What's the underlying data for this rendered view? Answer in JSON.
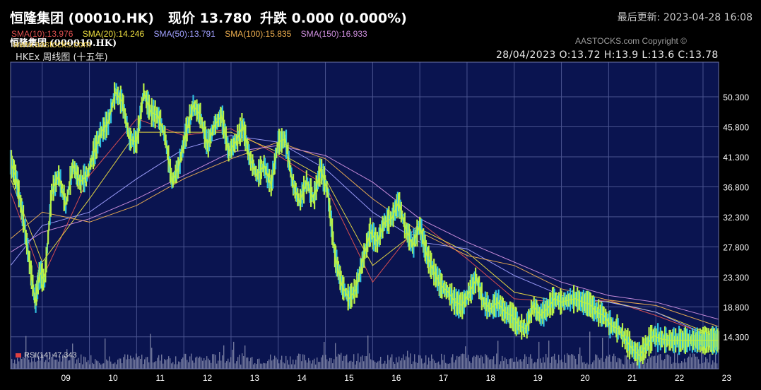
{
  "header": {
    "stock_name": "恒隆集团 (00010.HK)",
    "price": "现价 13.780",
    "change": "升跌 0.000 (0.000%)",
    "updated": "最后更新: 2023-04-28 16:08"
  },
  "chart_header": {
    "title": "恒隆集团 (000010.HK)",
    "copyright": "AASTOCKS.com Copyright ©",
    "subtitle": "HKEx 周线图 (十五年)",
    "ohlc": "28/04/2023   O:13.72  H:13.9  L:13.6  C:13.78",
    "website": "www.aastocks.com"
  },
  "sma_legend": [
    {
      "label": "SMA(10):13.976",
      "color": "#e05050"
    },
    {
      "label": "SMA(20):14.246",
      "color": "#f0e040"
    },
    {
      "label": "SMA(50):13.791",
      "color": "#a0a0ff"
    },
    {
      "label": "SMA(100):15.835",
      "color": "#f0b050"
    },
    {
      "label": "SMA(150):16.933",
      "color": "#d090e0"
    }
  ],
  "rsi_label": "RSI(14)  47.343",
  "colors": {
    "plot_bg": "#0a1450",
    "grid": "#4a5490",
    "price": "#b8f048",
    "candle_alt": "#30c0e0",
    "volume": "#8a8fae",
    "sma10": "#e05050",
    "sma20": "#f0e040",
    "sma50": "#a0a0ff",
    "sma100": "#f0b050",
    "sma150": "#d090e0"
  },
  "chart_data": {
    "type": "line",
    "title": "恒隆集团 (000010.HK)",
    "xlabel": "",
    "ylabel": "",
    "x_ticks": [
      "09",
      "10",
      "11",
      "12",
      "13",
      "14",
      "15",
      "16",
      "17",
      "18",
      "19",
      "20",
      "21",
      "22",
      "23"
    ],
    "y_ticks": [
      "50.300",
      "45.800",
      "41.300",
      "36.800",
      "32.300",
      "27.800",
      "23.300",
      "18.800",
      "14.300"
    ],
    "ylim": [
      9.5,
      55.5
    ],
    "x_range": [
      2008.33,
      2023.33
    ],
    "grid": true,
    "price_series": {
      "name": "price",
      "x": [
        2008.33,
        2008.45,
        2008.6,
        2008.75,
        2008.85,
        2008.95,
        2009.05,
        2009.2,
        2009.35,
        2009.5,
        2009.65,
        2009.8,
        2009.95,
        2010.1,
        2010.25,
        2010.4,
        2010.55,
        2010.7,
        2010.85,
        2011.0,
        2011.15,
        2011.3,
        2011.45,
        2011.6,
        2011.75,
        2011.9,
        2012.05,
        2012.2,
        2012.35,
        2012.5,
        2012.65,
        2012.8,
        2012.95,
        2013.1,
        2013.25,
        2013.4,
        2013.55,
        2013.7,
        2013.85,
        2014.0,
        2014.15,
        2014.3,
        2014.45,
        2014.6,
        2014.75,
        2014.9,
        2015.05,
        2015.2,
        2015.35,
        2015.5,
        2015.65,
        2015.8,
        2015.95,
        2016.1,
        2016.25,
        2016.4,
        2016.55,
        2016.7,
        2016.85,
        2017.0,
        2017.15,
        2017.3,
        2017.45,
        2017.6,
        2017.75,
        2017.9,
        2018.05,
        2018.2,
        2018.35,
        2018.5,
        2018.65,
        2018.8,
        2018.95,
        2019.1,
        2019.25,
        2019.4,
        2019.55,
        2019.7,
        2019.85,
        2020.0,
        2020.15,
        2020.3,
        2020.45,
        2020.6,
        2020.75,
        2020.9,
        2021.05,
        2021.2,
        2021.35,
        2021.5,
        2021.65,
        2021.8,
        2021.95,
        2022.1,
        2022.25,
        2022.4,
        2022.55,
        2022.7,
        2022.85,
        2022.95,
        2023.05,
        2023.15,
        2023.25,
        2023.33
      ],
      "values": [
        40.5,
        38.0,
        32.0,
        24.5,
        19.5,
        24.0,
        22.5,
        36.0,
        38.5,
        34.0,
        40.0,
        37.5,
        38.5,
        42.0,
        45.0,
        46.5,
        51.0,
        49.5,
        44.0,
        43.5,
        51.0,
        48.0,
        47.5,
        44.5,
        37.5,
        40.0,
        45.0,
        49.0,
        47.5,
        43.0,
        46.0,
        47.5,
        42.0,
        43.5,
        46.0,
        41.0,
        38.5,
        40.0,
        37.0,
        43.5,
        44.0,
        37.5,
        34.5,
        37.5,
        35.0,
        39.5,
        36.0,
        26.5,
        22.0,
        20.0,
        21.5,
        26.0,
        30.0,
        28.5,
        31.5,
        32.0,
        34.5,
        30.5,
        28.0,
        31.0,
        26.5,
        24.0,
        22.0,
        21.0,
        19.5,
        19.0,
        21.0,
        23.0,
        19.5,
        18.5,
        19.5,
        18.0,
        17.5,
        16.0,
        15.5,
        19.0,
        17.5,
        18.5,
        20.0,
        19.5,
        19.8,
        20.0,
        19.5,
        19.2,
        18.0,
        17.5,
        16.0,
        15.5,
        14.0,
        12.5,
        11.5,
        13.0,
        14.5,
        14.0,
        13.78,
        13.78,
        13.78,
        13.78,
        13.78,
        13.78,
        13.78,
        13.78,
        13.78,
        13.78
      ]
    },
    "series": [
      {
        "name": "SMA(10)",
        "x": [
          2008.33,
          2009.0,
          2010.0,
          2011.0,
          2012.0,
          2013.0,
          2014.0,
          2015.0,
          2016.0,
          2017.0,
          2018.0,
          2019.0,
          2020.0,
          2021.0,
          2022.0,
          2023.33
        ],
        "values": [
          36.0,
          23.0,
          38.5,
          47.0,
          44.5,
          45.5,
          41.5,
          37.0,
          22.5,
          31.5,
          26.0,
          20.0,
          19.5,
          19.8,
          17.5,
          13.976
        ]
      },
      {
        "name": "SMA(20)",
        "x": [
          2008.33,
          2009.0,
          2010.0,
          2011.0,
          2012.0,
          2013.0,
          2014.0,
          2015.0,
          2016.0,
          2017.0,
          2018.0,
          2019.0,
          2020.0,
          2021.0,
          2022.0,
          2023.33
        ],
        "values": [
          38.0,
          25.5,
          35.0,
          45.0,
          45.0,
          45.0,
          42.0,
          38.0,
          25.0,
          30.5,
          27.0,
          21.0,
          19.5,
          19.6,
          18.0,
          14.246
        ]
      },
      {
        "name": "SMA(50)",
        "x": [
          2008.33,
          2009.0,
          2010.0,
          2011.0,
          2012.0,
          2013.0,
          2014.0,
          2015.0,
          2016.0,
          2017.0,
          2018.0,
          2019.0,
          2020.0,
          2021.0,
          2022.0,
          2023.33
        ],
        "values": [
          25.0,
          31.0,
          33.0,
          38.0,
          42.5,
          44.5,
          43.5,
          39.5,
          33.0,
          28.5,
          27.5,
          23.5,
          20.5,
          19.5,
          18.0,
          13.791
        ]
      },
      {
        "name": "SMA(100)",
        "x": [
          2008.33,
          2009.0,
          2010.0,
          2011.0,
          2012.0,
          2013.0,
          2014.0,
          2015.0,
          2016.0,
          2017.0,
          2018.0,
          2019.0,
          2020.0,
          2021.0,
          2022.0,
          2023.33
        ],
        "values": [
          29.0,
          33.0,
          31.5,
          34.0,
          38.0,
          41.0,
          43.5,
          41.0,
          35.0,
          30.0,
          26.5,
          25.0,
          21.5,
          19.8,
          19.0,
          15.835
        ]
      },
      {
        "name": "SMA(150)",
        "x": [
          2008.33,
          2009.0,
          2010.0,
          2011.0,
          2012.0,
          2013.0,
          2014.0,
          2015.0,
          2016.0,
          2017.0,
          2018.0,
          2019.0,
          2020.0,
          2021.0,
          2022.0,
          2023.33
        ],
        "values": [
          27.0,
          30.0,
          32.0,
          35.0,
          38.5,
          42.0,
          43.0,
          41.5,
          37.5,
          32.0,
          28.5,
          25.5,
          22.5,
          20.5,
          19.5,
          16.933
        ]
      }
    ]
  }
}
